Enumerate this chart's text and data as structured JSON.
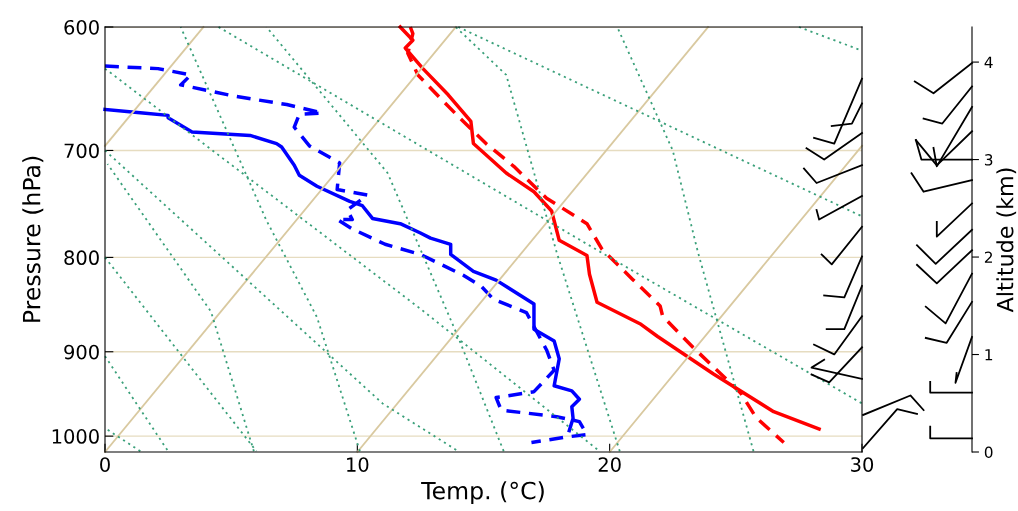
{
  "chart_data": [
    {
      "type": "line",
      "xlabel": "Temp. (°C)",
      "ylabel": "Pressure (hPa)",
      "y2label": "Altitude (km)",
      "y2lim": [
        0,
        4.36
      ],
      "y2ticks": [
        0,
        1,
        2,
        3,
        4
      ],
      "log": "y",
      "grid": "y",
      "xlim": [
        0,
        30
      ],
      "xticks": [
        0,
        10,
        20,
        30
      ],
      "ylim": [
        1020,
        600
      ],
      "yticks": [
        600,
        700,
        800,
        900,
        1000
      ],
      "series": [
        {
          "color": "#0000ff",
          "line_style": "solid",
          "x": [
            0,
            1.5,
            2.5,
            2.5,
            3.45,
            5.75,
            6.8,
            7.0,
            7.5,
            7.7,
            8.4,
            9.7,
            10.2,
            10.6,
            11.7,
            12.5,
            12.9,
            13.7,
            13.7,
            14.6,
            15.5,
            17.0,
            17.0,
            17.8,
            18.0,
            17.8,
            18.5,
            18.8,
            18.5,
            18.55,
            18.4
          ],
          "values": [
            665,
            668,
            670,
            672,
            684,
            687,
            694,
            697,
            713,
            722,
            732,
            746,
            750,
            762,
            767,
            776,
            781,
            787,
            797,
            814,
            823,
            848,
            875,
            888,
            908,
            939,
            945,
            955,
            964,
            978,
            993
          ]
        },
        {
          "color": "#0000ff",
          "line_style": "dashed",
          "x": [
            0,
            2.1,
            3.4,
            3.0,
            5.1,
            7.2,
            8.6,
            7.7,
            7.5,
            8.1,
            9.3,
            9.2,
            10.4,
            9.6,
            9.8,
            9.2,
            9.8,
            11.1,
            12.5,
            14.2,
            14.9,
            15.4,
            16.7,
            17.5,
            17.8,
            17.0,
            15.5,
            15.7,
            17.9,
            18.8,
            19.1,
            18.3,
            16.9
          ],
          "values": [
            630,
            632,
            637,
            645,
            654,
            661,
            668,
            669,
            680,
            696,
            711,
            735,
            740,
            754,
            763,
            763,
            772,
            787,
            797,
            818,
            829,
            843,
            857,
            898,
            921,
            946,
            953,
            968,
            976,
            982,
            998,
            1001,
            1008
          ]
        },
        {
          "color": "#ff0000",
          "line_style": "solid",
          "x": [
            11.7,
            12.2,
            11.9,
            12.6,
            13.6,
            14.5,
            14.6,
            15.9,
            17.0,
            17.7,
            18.0,
            19.1,
            19.2,
            19.5,
            21.2,
            21.9,
            24.1,
            26.5,
            28.3
          ],
          "values": [
            600,
            610,
            616,
            632,
            653,
            675,
            694,
            720,
            737,
            755,
            783,
            798,
            817,
            846,
            869,
            883,
            925,
            970,
            991
          ]
        },
        {
          "color": "#ff0000",
          "line_style": "dashed",
          "x": [
            12.1,
            12.2,
            12.0,
            12.4,
            13.3,
            14.1,
            15.1,
            16.2,
            17.5,
            19.1,
            19.7,
            20.9,
            22.0,
            22.1,
            23.3,
            24.4,
            25.2,
            25.8,
            26.9
          ],
          "values": [
            600,
            605,
            620,
            637,
            656,
            673,
            694,
            714,
            743,
            767,
            792,
            822,
            850,
            861,
            895,
            925,
            948,
            977,
            1008
          ]
        },
        {
          "color": "#d9c9a0",
          "line_style": "solid",
          "x": [
            0,
            3.9
          ],
          "values": [
            696,
            600
          ]
        },
        {
          "color": "#d9c9a0",
          "line_style": "solid",
          "x": [
            0,
            13.9
          ],
          "values": [
            1020,
            600
          ]
        },
        {
          "color": "#d9c9a0",
          "line_style": "solid",
          "x": [
            10,
            23.9
          ],
          "values": [
            1020,
            600
          ]
        },
        {
          "color": "#d9c9a0",
          "line_style": "solid",
          "x": [
            20,
            30
          ],
          "values": [
            1020,
            696
          ]
        },
        {
          "color": "#3aa07a",
          "line_style": "dotted",
          "x": [
            25.7,
            23.5,
            22.5,
            20.3
          ],
          "values": [
            1019,
            795,
            700,
            600
          ]
        },
        {
          "color": "#3aa07a",
          "line_style": "dotted",
          "x": [
            20.4,
            17.9,
            15.9,
            13.9
          ],
          "values": [
            1019,
            795,
            637,
            600
          ]
        },
        {
          "color": "#3aa07a",
          "line_style": "dotted",
          "x": [
            15.8,
            14.0,
            11.2,
            6.4
          ],
          "values": [
            1019,
            884,
            720,
            600
          ]
        },
        {
          "color": "#3aa07a",
          "line_style": "dotted",
          "x": [
            10.1,
            8.4,
            6.4,
            3.0
          ],
          "values": [
            1019,
            862,
            764,
            600
          ]
        },
        {
          "color": "#3aa07a",
          "line_style": "dotted",
          "x": [
            5.9,
            4.2,
            0.1
          ],
          "values": [
            1019,
            856,
            712
          ]
        },
        {
          "color": "#3aa07a",
          "line_style": "dotted",
          "x": [
            1.4,
            0.1
          ],
          "values": [
            1019,
            992
          ]
        },
        {
          "color": "#3aa07a",
          "line_style": "dotted",
          "x": [
            0,
            12.5,
            19.6
          ],
          "values": [
            632,
            853,
            1019
          ]
        },
        {
          "color": "#3aa07a",
          "line_style": "dotted",
          "x": [
            0,
            11,
            14
          ],
          "values": [
            700,
            960,
            1019
          ]
        },
        {
          "color": "#3aa07a",
          "line_style": "dotted",
          "x": [
            0,
            6
          ],
          "values": [
            800,
            1019
          ]
        },
        {
          "color": "#3aa07a",
          "line_style": "dotted",
          "x": [
            0,
            2.5
          ],
          "values": [
            905,
            1019
          ]
        },
        {
          "color": "#3aa07a",
          "line_style": "dotted",
          "x": [
            4.5,
            20,
            30
          ],
          "values": [
            600,
            800,
            960
          ]
        },
        {
          "color": "#3aa07a",
          "line_style": "dotted",
          "x": [
            14,
            30
          ],
          "values": [
            600,
            760
          ]
        },
        {
          "color": "#3aa07a",
          "line_style": "dotted",
          "x": [
            27.5,
            30
          ],
          "values": [
            600,
            618
          ]
        },
        {
          "color": "#000000",
          "line_style": "solid",
          "x": [
            30,
            28.9,
            28.1
          ],
          "values": [
            640,
            694,
            689
          ]
        },
        {
          "color": "#000000",
          "line_style": "solid",
          "x": [
            30,
            29.6,
            28.8
          ],
          "values": [
            660,
            677,
            679
          ]
        },
        {
          "color": "#000000",
          "line_style": "solid",
          "x": [
            30,
            28.5,
            27.8
          ],
          "values": [
            685,
            708,
            698
          ]
        },
        {
          "color": "#000000",
          "line_style": "solid",
          "x": [
            30,
            28.2,
            27.7
          ],
          "values": [
            713,
            729,
            716
          ]
        },
        {
          "color": "#000000",
          "line_style": "solid",
          "x": [
            30,
            28.3,
            28.2
          ],
          "values": [
            741,
            763,
            754
          ]
        },
        {
          "color": "#000000",
          "line_style": "solid",
          "x": [
            30,
            28.8,
            28.4
          ],
          "values": [
            770,
            807,
            797
          ]
        },
        {
          "color": "#000000",
          "line_style": "solid",
          "x": [
            30,
            29.3,
            28.5
          ],
          "values": [
            799,
            841,
            839
          ]
        },
        {
          "color": "#000000",
          "line_style": "solid",
          "x": [
            30,
            29.3,
            28.6
          ],
          "values": [
            829,
            875,
            875
          ]
        },
        {
          "color": "#000000",
          "line_style": "solid",
          "x": [
            30,
            28.9,
            28.1
          ],
          "values": [
            861,
            903,
            892
          ]
        },
        {
          "color": "#000000",
          "line_style": "solid",
          "x": [
            30,
            28.7,
            28.0
          ],
          "values": [
            895,
            935,
            926
          ]
        },
        {
          "color": "#000000",
          "line_style": "solid",
          "x": [
            30,
            28.0,
            28.5
          ],
          "values": [
            931,
            918,
            909
          ]
        }
      ]
    }
  ]
}
